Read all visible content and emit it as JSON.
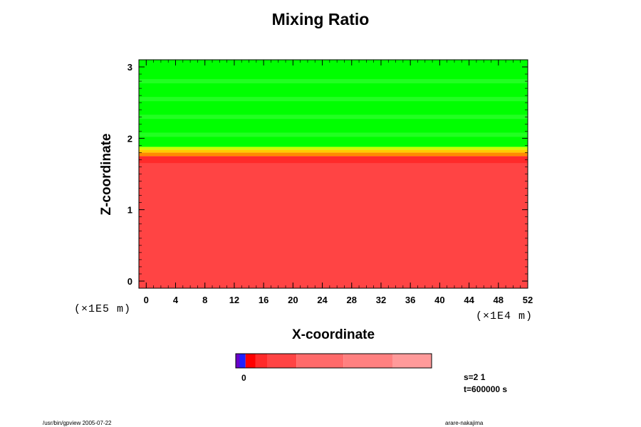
{
  "chart_data": {
    "type": "heatmap",
    "title": "Mixing Ratio",
    "xlabel": "X-coordinate",
    "ylabel": "Z-coordinate",
    "x_unit": "(×1E4 m)",
    "y_unit": "(×1E5 m)",
    "xlim": [
      -1,
      52
    ],
    "ylim": [
      -0.1,
      3.1
    ],
    "x_ticks": [
      "0",
      "4",
      "8",
      "12",
      "16",
      "20",
      "24",
      "28",
      "32",
      "36",
      "40",
      "44",
      "48",
      "52"
    ],
    "y_ticks": [
      "0",
      "1",
      "2",
      "3"
    ],
    "layers": [
      {
        "z_min": -0.1,
        "z_max": 1.65,
        "color": "#ff4444"
      },
      {
        "z_min": 1.65,
        "z_max": 1.75,
        "color": "#ff2a2a"
      },
      {
        "z_min": 1.75,
        "z_max": 1.8,
        "color": "#ff8a00"
      },
      {
        "z_min": 1.8,
        "z_max": 1.84,
        "color": "#ffcc00"
      },
      {
        "z_min": 1.84,
        "z_max": 1.88,
        "color": "#ccff00"
      },
      {
        "z_min": 1.88,
        "z_max": 3.1,
        "color": "#00ff00"
      }
    ],
    "colorbar": {
      "label": "0",
      "colors": [
        "#6a00c8",
        "#2020ff",
        "#ff0000",
        "#ff2a2a",
        "#ff4444",
        "#ff6a6a",
        "#ff8080",
        "#ff9a9a"
      ],
      "fractions": [
        0.02,
        0.03,
        0.05,
        0.06,
        0.15,
        0.24,
        0.25,
        0.2
      ]
    }
  },
  "status": {
    "line1": "s=2 1",
    "line2": "t=600000 s"
  },
  "footer": {
    "left": "/usr/bin/gpview 2005-07-22",
    "right": "arare-nakajima"
  }
}
